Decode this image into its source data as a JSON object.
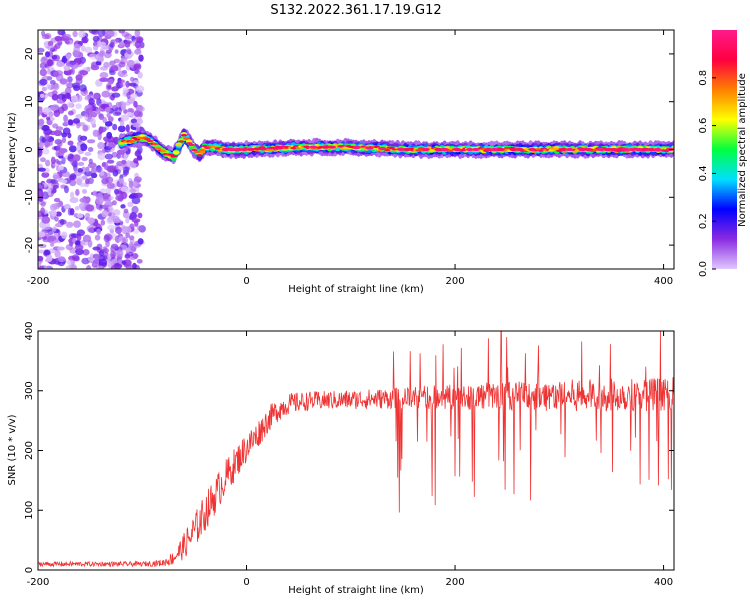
{
  "title": "S132.2022.361.17.19.G12",
  "chart_data": [
    {
      "type": "heatmap",
      "xlabel": "Height of straight line (km)",
      "ylabel": "Frequency (Hz)",
      "xlim": [
        -200,
        410
      ],
      "ylim": [
        -25,
        25
      ],
      "xticks": [
        -200,
        0,
        200,
        400
      ],
      "yticks": [
        -20,
        -10,
        0,
        10,
        20
      ],
      "colorbar": {
        "label": "Normalized spectral amplitude",
        "range": [
          0,
          1
        ],
        "ticks": [
          "0.0",
          "0.2",
          "0.4",
          "0.6",
          "0.8"
        ],
        "colors": [
          "#e0c8ff",
          "#8a2be2",
          "#0000ff",
          "#00e0ff",
          "#00ff40",
          "#ffff00",
          "#ff8000",
          "#ff0040",
          "#ff1a8c"
        ]
      },
      "noise_region_x": [
        -200,
        -100
      ],
      "ridge": {
        "x": [
          -120,
          -110,
          -100,
          -90,
          -80,
          -70,
          -60,
          -55,
          -50,
          -45,
          -40,
          -30,
          -20,
          0,
          50,
          100,
          150,
          200,
          250,
          300,
          350,
          410
        ],
        "y": [
          1.5,
          2,
          2.5,
          1.5,
          -0.5,
          -1.5,
          3,
          1.5,
          0,
          -1,
          0.5,
          0.5,
          0,
          0,
          0.5,
          0.5,
          0,
          0,
          0,
          0,
          0,
          0
        ],
        "peak_amplitude": 1.0
      }
    },
    {
      "type": "line",
      "xlabel": "Height of straight line (km)",
      "ylabel": "SNR (10 * v/v)",
      "xlim": [
        -200,
        410
      ],
      "ylim": [
        0,
        400
      ],
      "xticks": [
        -200,
        0,
        200,
        400
      ],
      "yticks": [
        0,
        100,
        200,
        300,
        400
      ],
      "line_color": "#ef3232",
      "envelope": {
        "x": [
          -200,
          -150,
          -100,
          -80,
          -70,
          -60,
          -50,
          -40,
          -30,
          -20,
          -10,
          0,
          10,
          20,
          30,
          40,
          60,
          100,
          150,
          200,
          250,
          300,
          350,
          410
        ],
        "y": [
          10,
          10,
          10,
          12,
          20,
          40,
          65,
          95,
          125,
          155,
          180,
          205,
          225,
          250,
          268,
          278,
          283,
          285,
          288,
          290,
          292,
          292,
          293,
          295
        ],
        "noise": [
          4,
          4,
          4,
          6,
          12,
          22,
          30,
          32,
          32,
          30,
          28,
          26,
          24,
          22,
          20,
          18,
          16,
          16,
          18,
          22,
          24,
          26,
          28,
          28
        ]
      }
    }
  ]
}
